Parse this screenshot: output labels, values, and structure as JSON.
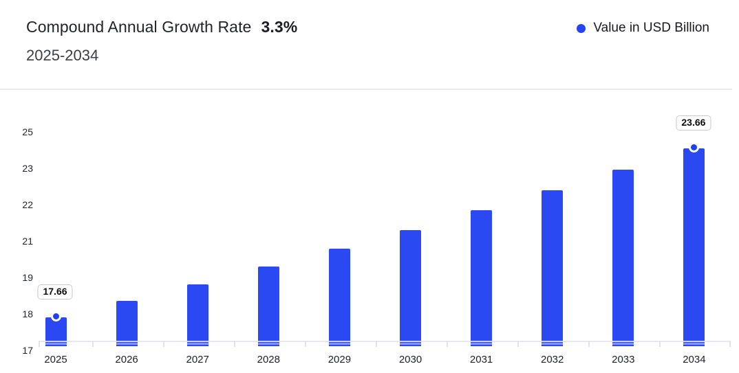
{
  "header": {
    "title": "Compound Annual Growth Rate",
    "cagr": "3.3%",
    "subtitle": "2025-2034"
  },
  "legend": {
    "label": "Value in USD Billion",
    "marker_color": "#2443f2"
  },
  "chart_data": {
    "type": "bar",
    "title": "Compound Annual Growth Rate 3.3%",
    "subtitle": "2025-2034",
    "ylabel": "Value in USD Billion",
    "xlabel": "",
    "categories": [
      "2025",
      "2026",
      "2027",
      "2028",
      "2029",
      "2030",
      "2031",
      "2032",
      "2033",
      "2034"
    ],
    "values": [
      17.66,
      18.24,
      18.84,
      19.47,
      20.11,
      20.77,
      21.46,
      22.17,
      22.9,
      23.66
    ],
    "data_labels": [
      {
        "category": "2025",
        "value": 17.66,
        "text": "17.66"
      },
      {
        "category": "2034",
        "value": 23.66,
        "text": "23.66"
      }
    ],
    "y_ticks_top_to_bottom": [
      "25",
      "23",
      "22",
      "21",
      "19",
      "18",
      "17"
    ],
    "ylim": [
      17,
      25
    ],
    "bar_color": "#2b49f3",
    "marker_color": "#1f41f1",
    "grid": false,
    "legend_position": "top-right"
  }
}
